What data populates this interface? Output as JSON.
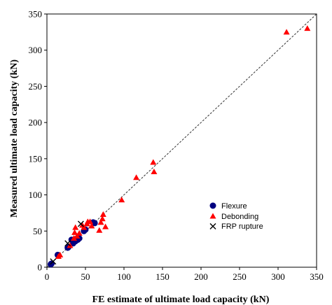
{
  "chart_data": {
    "type": "scatter",
    "title": "",
    "xlabel": "FE estimate of ultimate load capacity (kN)",
    "ylabel": "Measured ultimate load capacity (kN)",
    "xlim": [
      0,
      350
    ],
    "ylim": [
      0,
      350
    ],
    "x_ticks": [
      "0",
      "50",
      "100",
      "150",
      "200",
      "250",
      "300",
      "350"
    ],
    "y_ticks": [
      "0",
      "50",
      "100",
      "150",
      "200",
      "250",
      "300",
      "350"
    ],
    "grid": false,
    "legend_position": "inside-lower-right",
    "reference_line": {
      "style": "dashed",
      "from": [
        0,
        0
      ],
      "to": [
        350,
        350
      ]
    },
    "series": [
      {
        "name": "Flexure",
        "marker": "circle",
        "color": "#000080",
        "points": [
          [
            5,
            4
          ],
          [
            6,
            5
          ],
          [
            14,
            17
          ],
          [
            27,
            27
          ],
          [
            28,
            28
          ],
          [
            32,
            38
          ],
          [
            34,
            33
          ],
          [
            37,
            36
          ],
          [
            38,
            39
          ],
          [
            40,
            38
          ],
          [
            42,
            40
          ],
          [
            48,
            50
          ],
          [
            50,
            52
          ],
          [
            60,
            62
          ],
          [
            62,
            61
          ]
        ]
      },
      {
        "name": "Debonding",
        "marker": "triangle",
        "color": "#ff0000",
        "points": [
          [
            15,
            15
          ],
          [
            17,
            17
          ],
          [
            30,
            30
          ],
          [
            35,
            40
          ],
          [
            36,
            48
          ],
          [
            37,
            55
          ],
          [
            39,
            43
          ],
          [
            42,
            47
          ],
          [
            46,
            58
          ],
          [
            48,
            55
          ],
          [
            52,
            60
          ],
          [
            53,
            63
          ],
          [
            56,
            63
          ],
          [
            58,
            57
          ],
          [
            68,
            51
          ],
          [
            70,
            62
          ],
          [
            72,
            67
          ],
          [
            73,
            73
          ],
          [
            76,
            56
          ],
          [
            97,
            93
          ],
          [
            116,
            124
          ],
          [
            138,
            145
          ],
          [
            139,
            132
          ],
          [
            311,
            325
          ],
          [
            338,
            330
          ]
        ]
      },
      {
        "name": "FRP rupture",
        "marker": "x",
        "color": "#000000",
        "points": [
          [
            8,
            8
          ],
          [
            27,
            33
          ],
          [
            44,
            60
          ]
        ]
      }
    ]
  }
}
